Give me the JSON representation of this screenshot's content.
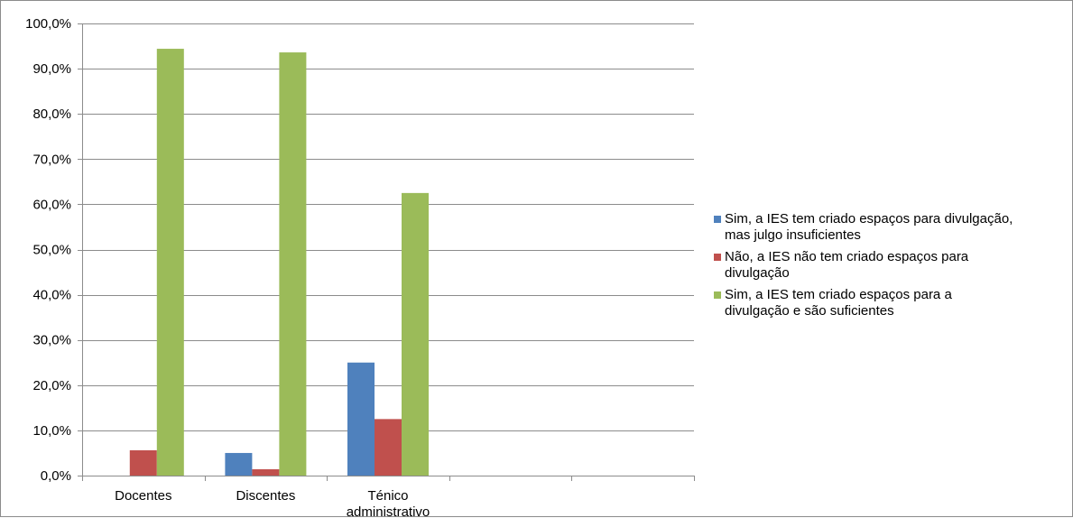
{
  "chart_data": {
    "type": "bar",
    "title": "",
    "xlabel": "",
    "ylabel": "",
    "categories": [
      "Docentes",
      "Discentes",
      "Ténico administrativo",
      "",
      ""
    ],
    "category_lines": [
      [
        "Docentes"
      ],
      [
        "Discentes"
      ],
      [
        "Ténico",
        "administrativo"
      ],
      [
        ""
      ],
      [
        ""
      ]
    ],
    "y_ticks": [
      0,
      10,
      20,
      30,
      40,
      50,
      60,
      70,
      80,
      90,
      100
    ],
    "y_tick_labels": [
      "0,0%",
      "10,0%",
      "20,0%",
      "30,0%",
      "40,0%",
      "50,0%",
      "60,0%",
      "70,0%",
      "80,0%",
      "90,0%",
      "100,0%"
    ],
    "ylim": [
      0,
      100
    ],
    "grid": true,
    "legend_position": "right",
    "series": [
      {
        "name": "Sim, a IES tem criado espaços para divulgação, mas julgo insuficientes",
        "name_lines": [
          "Sim, a IES tem criado espaços para divulgação,",
          "mas julgo insuficientes"
        ],
        "color": "#4F81BD",
        "values": [
          0,
          5.0,
          25.0,
          null,
          null
        ]
      },
      {
        "name": "Não, a IES não tem criado espaços para divulgação",
        "name_lines": [
          "Não, a IES não tem criado espaços para",
          "divulgação"
        ],
        "color": "#C0504D",
        "values": [
          5.6,
          1.4,
          12.5,
          null,
          null
        ]
      },
      {
        "name": "Sim, a IES tem criado espaços para a divulgação e são suficientes",
        "name_lines": [
          "Sim, a IES tem criado espaços para a",
          "divulgação e são suficientes"
        ],
        "color": "#9BBB59",
        "values": [
          94.4,
          93.6,
          62.5,
          null,
          null
        ]
      }
    ]
  }
}
